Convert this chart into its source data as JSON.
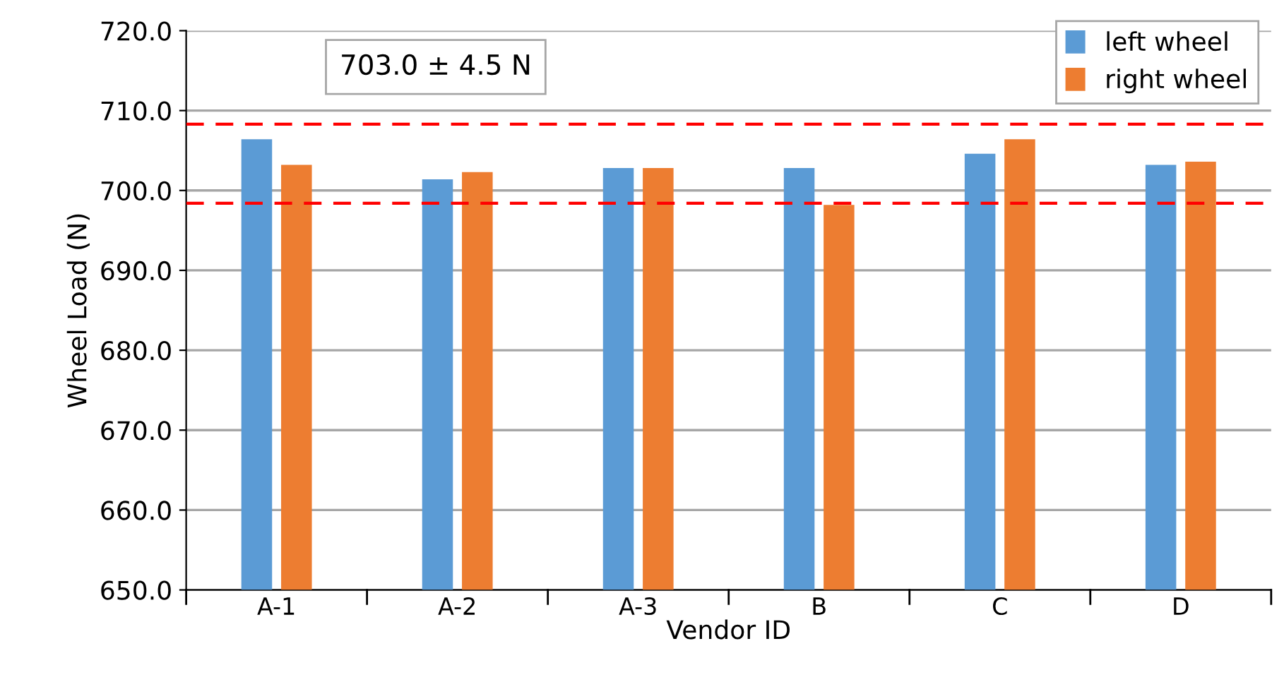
{
  "chart_data": {
    "type": "bar",
    "xlabel": "Vendor ID",
    "ylabel": "Wheel Load (N)",
    "categories": [
      "A-1",
      "A-2",
      "A-3",
      "B",
      "C",
      "D"
    ],
    "series": [
      {
        "name": "left wheel",
        "color": "#5b9bd5",
        "values": [
          706.4,
          701.4,
          702.8,
          702.8,
          704.6,
          703.2
        ]
      },
      {
        "name": "right wheel",
        "color": "#ed7d31",
        "values": [
          703.2,
          702.3,
          702.8,
          698.2,
          706.4,
          703.6
        ]
      }
    ],
    "ylim": [
      650,
      720
    ],
    "yticks": [
      {
        "value": 650,
        "label": "650.0"
      },
      {
        "value": 660,
        "label": "660.0"
      },
      {
        "value": 670,
        "label": "670.0"
      },
      {
        "value": 680,
        "label": "680.0"
      },
      {
        "value": 690,
        "label": "690.0"
      },
      {
        "value": 700,
        "label": "700.0"
      },
      {
        "value": 710,
        "label": "710.0"
      },
      {
        "value": 720,
        "label": "720.0"
      }
    ],
    "ref_lines": [
      {
        "axis": "y",
        "value": 708.3,
        "color": "#ff0000",
        "line_style": "dashed"
      },
      {
        "axis": "y",
        "value": 698.4,
        "color": "#ff0000",
        "line_style": "dashed"
      }
    ],
    "annotations": [
      "703.0 ± 4.5 N"
    ],
    "grid": "y",
    "legend": "top right"
  }
}
